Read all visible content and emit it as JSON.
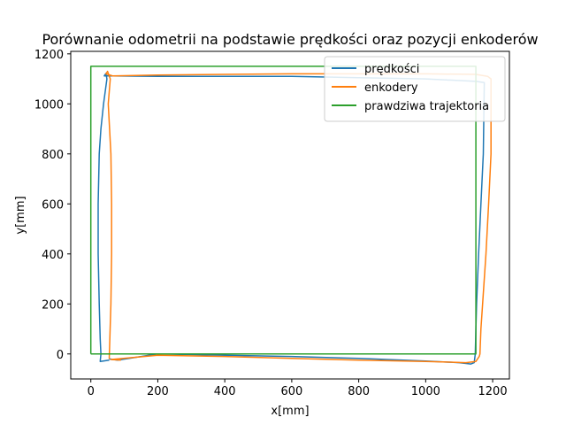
{
  "chart_data": {
    "type": "line",
    "title": "Porównanie odometrii na podstawie prędkości oraz pozycji enkoderów",
    "xlabel": "x[mm]",
    "ylabel": "y[mm]",
    "xlim": [
      -60,
      1250
    ],
    "ylim": [
      -100,
      1210
    ],
    "xticks": [
      0,
      200,
      400,
      600,
      800,
      1000,
      1200
    ],
    "yticks": [
      0,
      200,
      400,
      600,
      800,
      1000,
      1200
    ],
    "grid": false,
    "legend_position": "top-right",
    "series": [
      {
        "name": "prędkości",
        "color": "#1f77b4",
        "x": [
          55,
          80,
          200,
          400,
          600,
          800,
          1000,
          1100,
          1135,
          1145,
          1148,
          1150,
          1152,
          1158,
          1165,
          1172,
          1175,
          1150,
          1000,
          800,
          600,
          400,
          200,
          60,
          40,
          45,
          48,
          38,
          30,
          25,
          22,
          22,
          25,
          28,
          30,
          28,
          55
        ],
        "y": [
          -20,
          -25,
          0,
          -5,
          -10,
          -18,
          -28,
          -35,
          -40,
          -35,
          0,
          100,
          200,
          400,
          600,
          800,
          1085,
          1090,
          1100,
          1105,
          1110,
          1110,
          1110,
          1112,
          1112,
          1122,
          1100,
          1000,
          900,
          800,
          600,
          400,
          200,
          60,
          0,
          -30,
          -25
        ]
      },
      {
        "name": "enkodery",
        "color": "#ff7f0e",
        "x": [
          90,
          60,
          200,
          400,
          600,
          800,
          1000,
          1120,
          1150,
          1160,
          1162,
          1165,
          1170,
          1180,
          1188,
          1195,
          1195,
          1185,
          1150,
          1000,
          800,
          600,
          400,
          200,
          65,
          45,
          50,
          58,
          52,
          60,
          62,
          62,
          60,
          55
        ],
        "y": [
          -25,
          -22,
          -5,
          -10,
          -18,
          -25,
          -30,
          -35,
          -30,
          -10,
          0,
          100,
          200,
          400,
          600,
          800,
          1100,
          1110,
          1118,
          1120,
          1120,
          1120,
          1118,
          1115,
          1112,
          1120,
          1130,
          1100,
          1000,
          800,
          600,
          400,
          200,
          -20
        ]
      },
      {
        "name": "prawdziwa trajektoria",
        "color": "#2ca02c",
        "x": [
          0,
          1150,
          1150,
          0,
          0
        ],
        "y": [
          0,
          0,
          1150,
          1150,
          0
        ]
      }
    ]
  }
}
